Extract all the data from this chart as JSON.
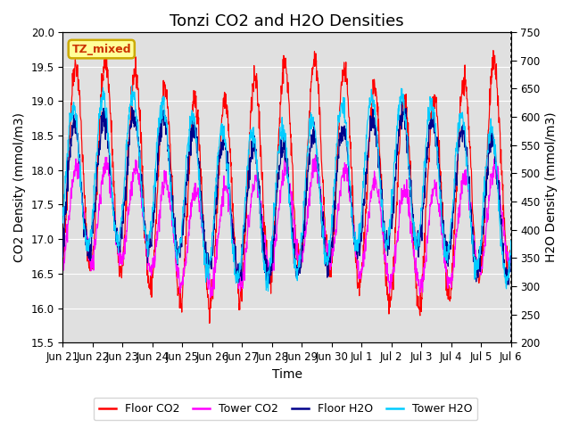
{
  "title": "Tonzi CO2 and H2O Densities",
  "xlabel": "Time",
  "ylabel_left": "CO2 Density (mmol/m3)",
  "ylabel_right": "H2O Density (mmol/m3)",
  "co2_ylim": [
    15.5,
    20.0
  ],
  "h2o_ylim": [
    200,
    750
  ],
  "co2_yticks": [
    15.5,
    16.0,
    16.5,
    17.0,
    17.5,
    18.0,
    18.5,
    19.0,
    19.5,
    20.0
  ],
  "h2o_yticks": [
    200,
    250,
    300,
    350,
    400,
    450,
    500,
    550,
    600,
    650,
    700,
    750
  ],
  "xtick_labels": [
    "Jun 21",
    "Jun 22",
    "Jun 23",
    "Jun 24",
    "Jun 25",
    "Jun 26",
    "Jun 27",
    "Jun 28",
    "Jun 29",
    "Jun 30",
    "Jul 1",
    "Jul 2",
    "Jul 3",
    "Jul 4",
    "Jul 5",
    "Jul 6"
  ],
  "color_floor_co2": "#FF0000",
  "color_tower_co2": "#FF00FF",
  "color_floor_h2o": "#00008B",
  "color_tower_h2o": "#00CCFF",
  "annotation_text": "TZ_mixed",
  "annotation_bg": "#FFFF99",
  "annotation_ec": "#CCAA00",
  "bg_shade_color": "#E0E0E0",
  "legend_labels": [
    "Floor CO2",
    "Tower CO2",
    "Floor H2O",
    "Tower H2O"
  ],
  "title_fontsize": 13,
  "axis_fontsize": 10,
  "tick_fontsize": 8.5,
  "n_days": 15
}
